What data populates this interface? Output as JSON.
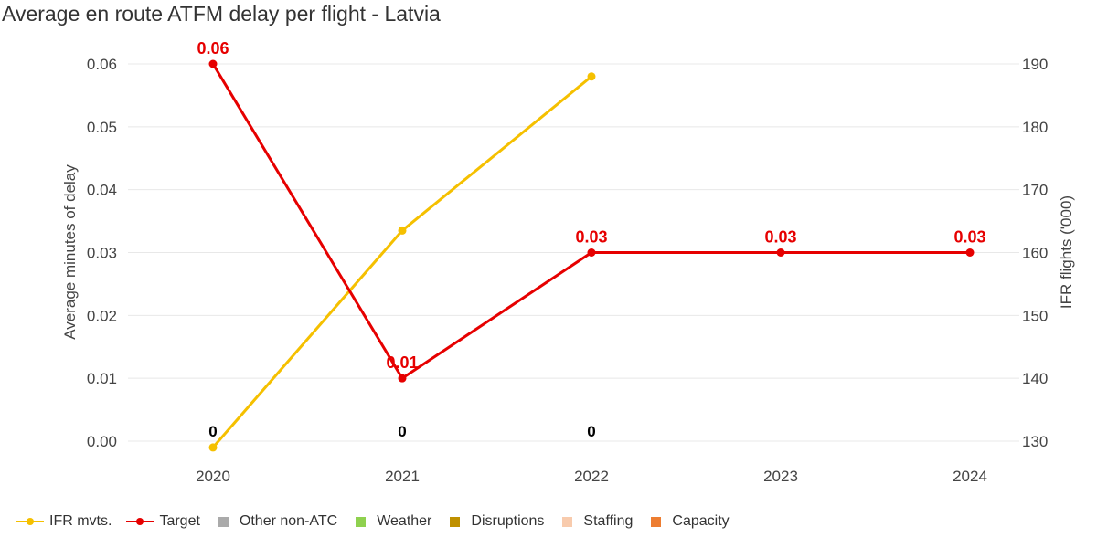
{
  "title": "Average en route ATFM delay per flight - Latvia",
  "chart_data": {
    "type": "line",
    "title": "Average en route ATFM delay per flight - Latvia",
    "categories": [
      "2020",
      "2021",
      "2022",
      "2023",
      "2024"
    ],
    "y_left": {
      "label": "Average minutes of delay",
      "range": [
        0,
        0.06
      ],
      "ticks": [
        "0.00",
        "0.01",
        "0.02",
        "0.03",
        "0.04",
        "0.05",
        "0.06"
      ]
    },
    "y_right": {
      "label": "IFR flights ('000)",
      "range": [
        130,
        190
      ],
      "ticks": [
        "130",
        "140",
        "150",
        "160",
        "170",
        "180",
        "190"
      ]
    },
    "series": [
      {
        "name": "IFR mvts.",
        "axis": "right",
        "color": "#f5c000",
        "values": [
          129,
          163.5,
          188,
          null,
          null
        ]
      },
      {
        "name": "Target",
        "axis": "left",
        "color": "#e60000",
        "values": [
          0.06,
          0.01,
          0.03,
          0.03,
          0.03
        ],
        "labels": [
          "0.06",
          "0.01",
          "0.03",
          "0.03",
          "0.03"
        ]
      },
      {
        "name": "Other non-ATC",
        "type": "bar",
        "color": "#aaaaaa",
        "values": [
          0,
          0,
          0,
          null,
          null
        ]
      },
      {
        "name": "Weather",
        "type": "bar",
        "color": "#8fd14f",
        "values": [
          0,
          0,
          0,
          null,
          null
        ]
      },
      {
        "name": "Disruptions",
        "type": "bar",
        "color": "#bf9000",
        "values": [
          0,
          0,
          0,
          null,
          null
        ]
      },
      {
        "name": "Staffing",
        "type": "bar",
        "color": "#f8cbad",
        "values": [
          0,
          0,
          0,
          null,
          null
        ]
      },
      {
        "name": "Capacity",
        "type": "bar",
        "color": "#ed7d31",
        "values": [
          0,
          0,
          0,
          null,
          null
        ]
      }
    ],
    "total_labels": [
      "0",
      "0",
      "0",
      null,
      null
    ],
    "grid": true,
    "legend_position": "bottom-left"
  }
}
